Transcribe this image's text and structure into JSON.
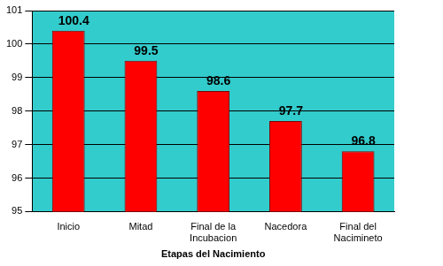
{
  "chart_data": {
    "type": "bar",
    "xlabel": "Etapas del Nacimiento",
    "categories": [
      "Inicio",
      "Mitad",
      "Final de la Incubacion",
      "Nacedora",
      "Final del Nacimineto"
    ],
    "values": [
      100.4,
      99.5,
      98.6,
      97.7,
      96.8
    ],
    "color": "#ff0000",
    "ylim": [
      95,
      101
    ],
    "yticks": [
      95,
      96,
      97,
      98,
      99,
      100,
      101
    ],
    "grid": true,
    "data_labels": true
  }
}
